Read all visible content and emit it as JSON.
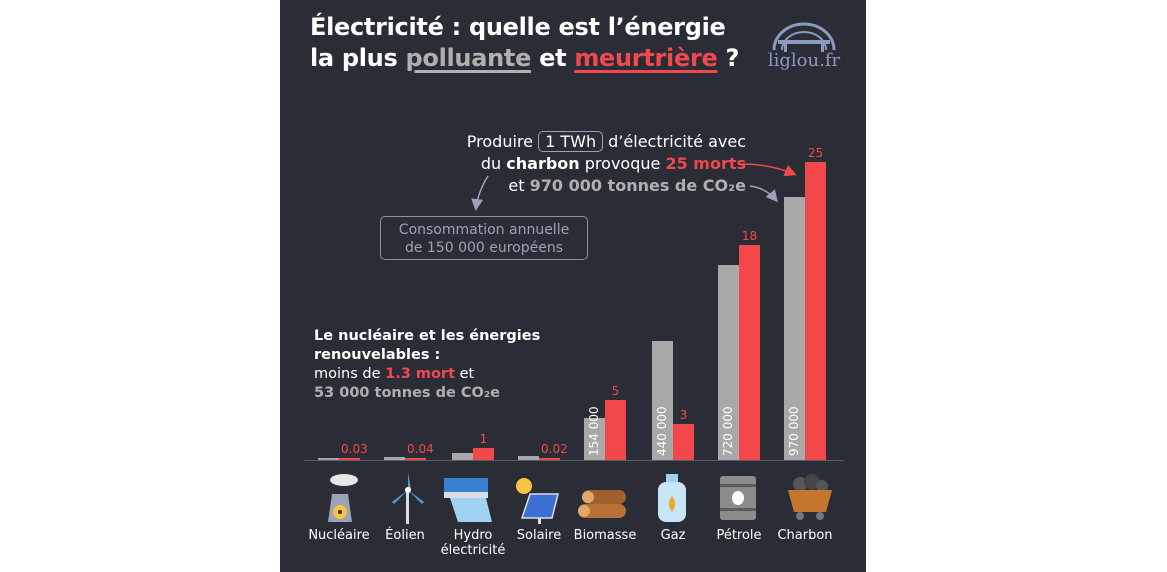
{
  "header": {
    "title_line1": "Électricité : quelle est l’énergie",
    "title_line2_pre": "la plus ",
    "title_word1": "polluante",
    "title_mid": " et ",
    "title_word2": "meurtrière",
    "title_end": " ?",
    "logo_text": "liglou.fr"
  },
  "callout": {
    "pre": "Produire ",
    "boxed": "1 TWh",
    "post": " d’électricité avec",
    "line2_pre": "du ",
    "line2_bold": "charbon",
    "line2_mid": " provoque ",
    "line2_red": "25 morts",
    "line3_pre": "et ",
    "line3_grey": "970 000 tonnes de CO₂e"
  },
  "conso": {
    "line1": "Consommation annuelle",
    "line2": "de 150 000 européens"
  },
  "nuc_note": {
    "line1": "Le nucléaire et les énergies",
    "line2": "renouvelables :",
    "line3_pre": "moins de ",
    "line3_red": "1.3 mort",
    "line3_post": " et",
    "line4": "53 000 tonnes de CO₂e"
  },
  "colors": {
    "co2": "#a8a8a8",
    "deaths": "#f2484c",
    "background": "#2a2d35"
  },
  "chart_data": {
    "type": "bar",
    "categories": [
      "Nucléaire",
      "Éolien",
      "Hydro électricité",
      "Solaire",
      "Biomasse",
      "Gaz",
      "Pétrole",
      "Charbon"
    ],
    "category_lines": [
      [
        "Nucléaire"
      ],
      [
        "Éolien"
      ],
      [
        "Hydro",
        "électricité"
      ],
      [
        "Solaire"
      ],
      [
        "Biomasse"
      ],
      [
        "Gaz"
      ],
      [
        "Pétrole"
      ],
      [
        "Charbon"
      ]
    ],
    "series": [
      {
        "name": "",
        "unit": "tonnes CO2e / TWh",
        "values": [
          3000,
          11000,
          24000,
          15000,
          154000,
          440000,
          720000,
          970000
        ],
        "labels": [
          "",
          "",
          "",
          "",
          "154 000",
          "440 000",
          "720 000",
          "970 000"
        ]
      },
      {
        "name": "",
        "unit": "morts / TWh",
        "values": [
          0.03,
          0.04,
          1,
          0.02,
          5,
          3,
          18,
          25
        ],
        "labels": [
          "0.03",
          "0.04",
          "1",
          "0.02",
          "5",
          "3",
          "18",
          "25"
        ]
      }
    ],
    "icons": [
      "nuclear-plant-icon",
      "wind-turbine-icon",
      "hydro-dam-icon",
      "solar-panel-icon",
      "wood-logs-icon",
      "gas-bottle-icon",
      "oil-barrel-icon",
      "coal-cart-icon"
    ],
    "xlabel": "",
    "ylabel": "",
    "grid": false
  }
}
